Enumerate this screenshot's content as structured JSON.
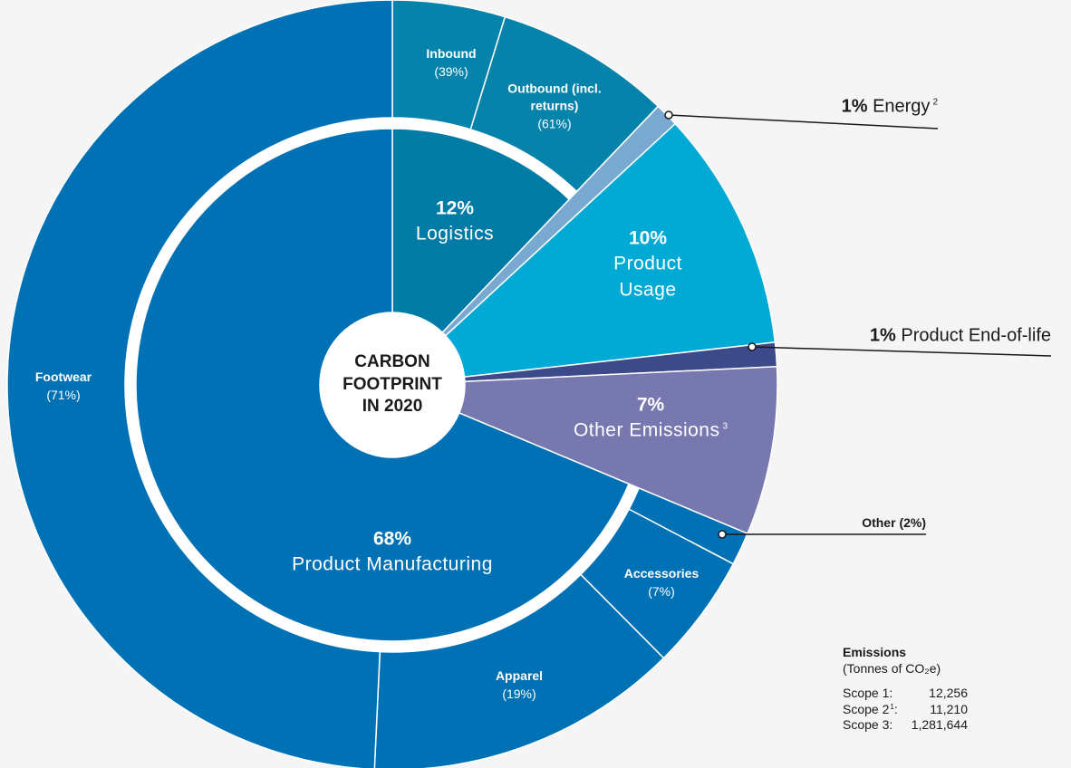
{
  "chart_data": {
    "type": "sunburst",
    "center_label": "CARBON FOOTPRINT IN 2020",
    "categories": [
      {
        "name": "Logistics",
        "value": 12,
        "value_label": "12%",
        "color": "#007ba6",
        "breakdown": [
          {
            "name": "Inbound",
            "value": 39,
            "value_label": "(39%)",
            "color": "#0583aa"
          },
          {
            "name": "Outbound (incl. returns)",
            "value": 61,
            "value_label": "(61%)",
            "color": "#0583aa"
          }
        ]
      },
      {
        "name": "Energy",
        "value": 1,
        "value_label": "1%",
        "note": "2",
        "color": "#79a9d0"
      },
      {
        "name": "Product Usage",
        "value": 10,
        "value_label": "10%",
        "color": "#00aad4"
      },
      {
        "name": "Product End-of-life",
        "value": 1,
        "value_label": "1%",
        "color": "#3d4a8a"
      },
      {
        "name": "Other Emissions",
        "value": 7,
        "value_label": "7%",
        "note": "3",
        "color": "#7878b0"
      },
      {
        "name": "Product Manufacturing",
        "value": 68,
        "value_label": "68%",
        "color": "#0071b4",
        "breakdown": [
          {
            "name": "Other",
            "value": 2,
            "value_label": "(2%)",
            "color": "#0071b4"
          },
          {
            "name": "Accessories",
            "value": 7,
            "value_label": "(7%)",
            "color": "#0071b4"
          },
          {
            "name": "Apparel",
            "value": 19,
            "value_label": "(19%)",
            "color": "#0071b4"
          },
          {
            "name": "Footwear",
            "value": 71,
            "value_label": "(71%)",
            "color": "#0071b4"
          }
        ]
      }
    ],
    "emissions": {
      "title": "Emissions",
      "unit": "(Tonnes of CO₂e)",
      "rows": [
        {
          "label": "Scope 1:",
          "value": 12256,
          "value_label": "12,256"
        },
        {
          "label": "Scope 2",
          "note": "1",
          "suffix": ":",
          "value": 11210,
          "value_label": "11,210"
        },
        {
          "label": "Scope 3:",
          "value": 1281644,
          "value_label": "1,281,644"
        }
      ]
    }
  }
}
